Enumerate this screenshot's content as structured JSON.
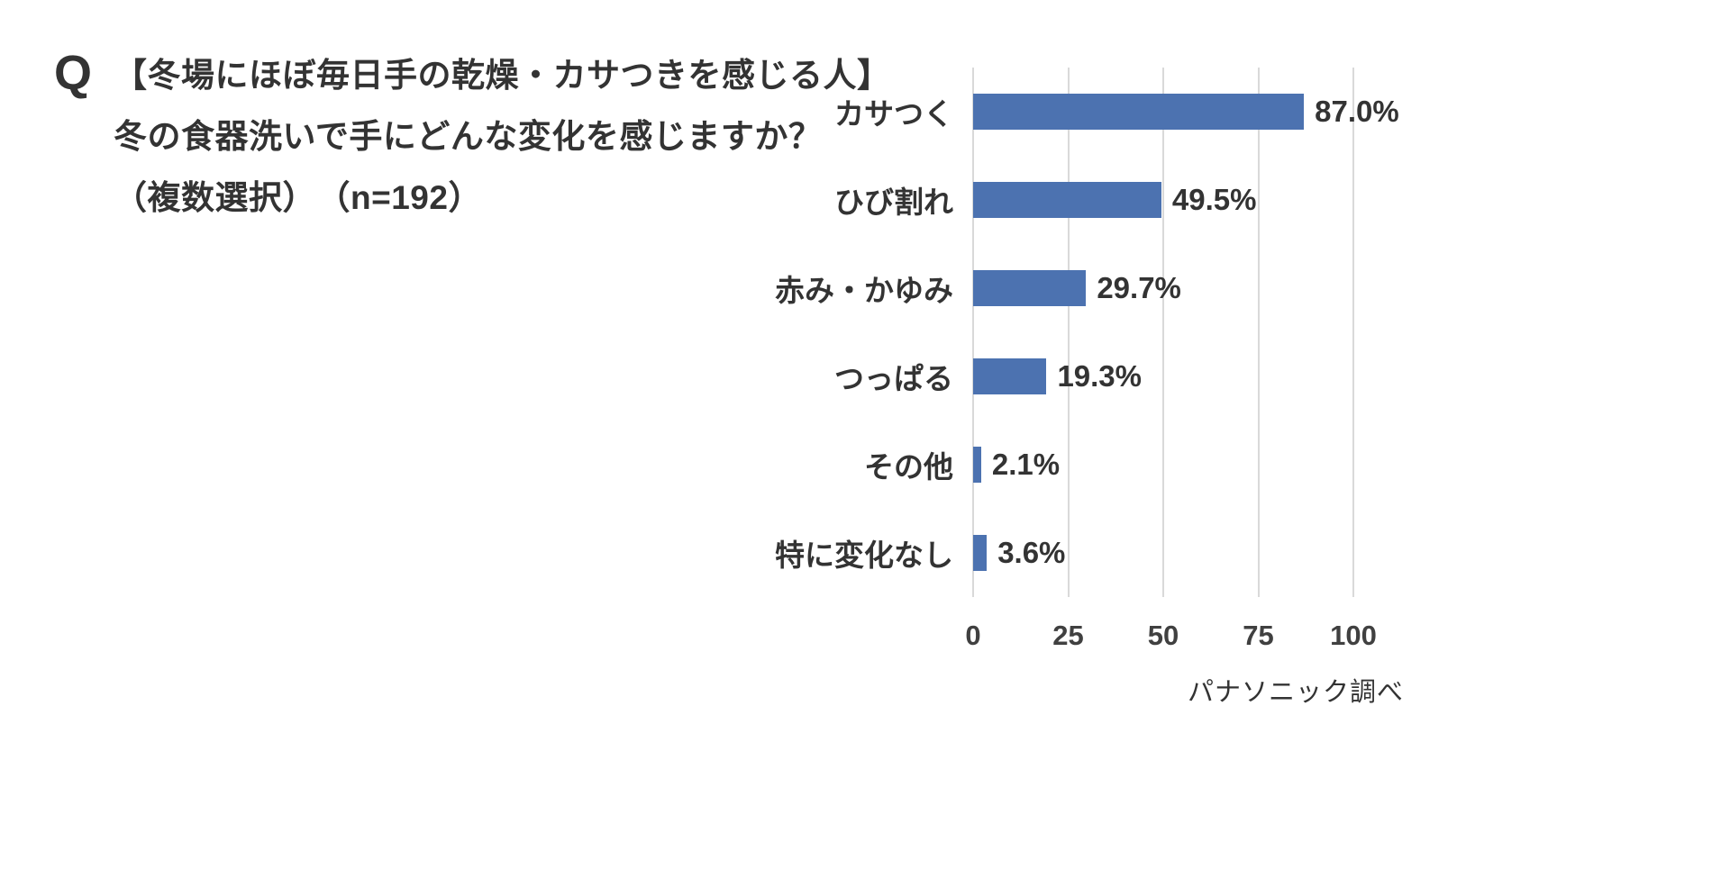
{
  "title": {
    "q_label": "Q",
    "line1": "【冬場にほぼ毎日手の乾燥・カサつきを感じる人】",
    "line2": "冬の食器洗いで手にどんな変化を感じますか？",
    "line3": "（複数選択）　（n=192）"
  },
  "chart_data": {
    "type": "bar",
    "orientation": "horizontal",
    "categories": [
      "カサつく",
      "ひび割れ",
      "赤み・かゆみ",
      "つっぱる",
      "その他",
      "特に変化なし"
    ],
    "values": [
      87.0,
      49.5,
      29.7,
      19.3,
      2.1,
      3.6
    ],
    "value_labels": [
      "87.0%",
      "49.5%",
      "29.7%",
      "19.3%",
      "2.1%",
      "3.6%"
    ],
    "xlim": [
      0,
      100
    ],
    "x_ticks": [
      0,
      25,
      50,
      75,
      100
    ],
    "x_tick_labels": [
      "0",
      "25",
      "50",
      "75",
      "100"
    ],
    "grid": true,
    "legend": "none",
    "bar_color": "#4c72b0",
    "gridline_color": "#d9d9d9"
  },
  "footer": {
    "source": "パナソニック調べ"
  }
}
